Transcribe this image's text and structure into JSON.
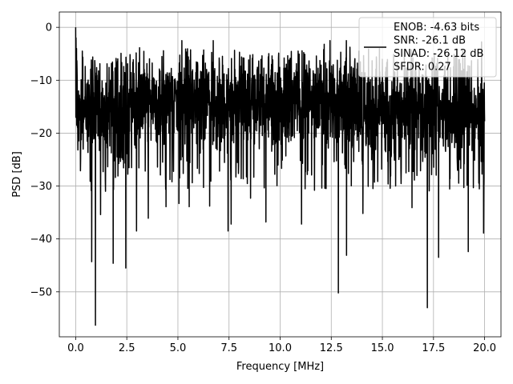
{
  "chart_data": {
    "type": "line",
    "title": "",
    "xlabel": "Frequency [MHz]",
    "ylabel": "PSD [dB]",
    "xlim": [
      -0.8,
      20.8
    ],
    "ylim": [
      -58.5,
      2.9
    ],
    "xticks": [
      0.0,
      2.5,
      5.0,
      7.5,
      10.0,
      12.5,
      15.0,
      17.5,
      20.0
    ],
    "xtick_labels": [
      "0.0",
      "2.5",
      "5.0",
      "7.5",
      "10.0",
      "12.5",
      "15.0",
      "17.5",
      "20.0"
    ],
    "yticks": [
      0,
      -10,
      -20,
      -30,
      -40,
      -50
    ],
    "ytick_labels": [
      "0",
      "−10",
      "−20",
      "−30",
      "−40",
      "−50"
    ],
    "grid": true,
    "legend_position": "top-right",
    "series": [
      {
        "name": "ENOB: -4.63 bits\nSNR: -26.1 dB\nSINAD: -26.12 dB\nSFDR: 0.27",
        "color": "#000000",
        "description": "dense noise-like power spectral density from 0 to 20 MHz",
        "x_range": [
          0.0,
          20.0
        ],
        "peak": {
          "x": 0.0,
          "y": 0.0
        },
        "typical_band": [
          -25,
          -8
        ],
        "deep_notches": [
          {
            "x": 0.78,
            "y": -44.3
          },
          {
            "x": 0.97,
            "y": -56.3
          },
          {
            "x": 1.22,
            "y": -35.4
          },
          {
            "x": 1.83,
            "y": -44.6
          },
          {
            "x": 2.45,
            "y": -45.5
          },
          {
            "x": 2.98,
            "y": -38.5
          },
          {
            "x": 3.55,
            "y": -36.1
          },
          {
            "x": 4.42,
            "y": -33.9
          },
          {
            "x": 5.05,
            "y": -33.3
          },
          {
            "x": 5.55,
            "y": -33.9
          },
          {
            "x": 6.55,
            "y": -33.8
          },
          {
            "x": 7.45,
            "y": -38.5
          },
          {
            "x": 7.6,
            "y": -37.2
          },
          {
            "x": 8.55,
            "y": -32.3
          },
          {
            "x": 9.3,
            "y": -36.8
          },
          {
            "x": 11.05,
            "y": -37.2
          },
          {
            "x": 12.85,
            "y": -50.2
          },
          {
            "x": 13.25,
            "y": -43.1
          },
          {
            "x": 14.05,
            "y": -35.2
          },
          {
            "x": 16.45,
            "y": -34.1
          },
          {
            "x": 17.2,
            "y": -53.0
          },
          {
            "x": 17.75,
            "y": -43.5
          },
          {
            "x": 19.2,
            "y": -42.4
          },
          {
            "x": 19.95,
            "y": -38.9
          }
        ]
      }
    ]
  }
}
